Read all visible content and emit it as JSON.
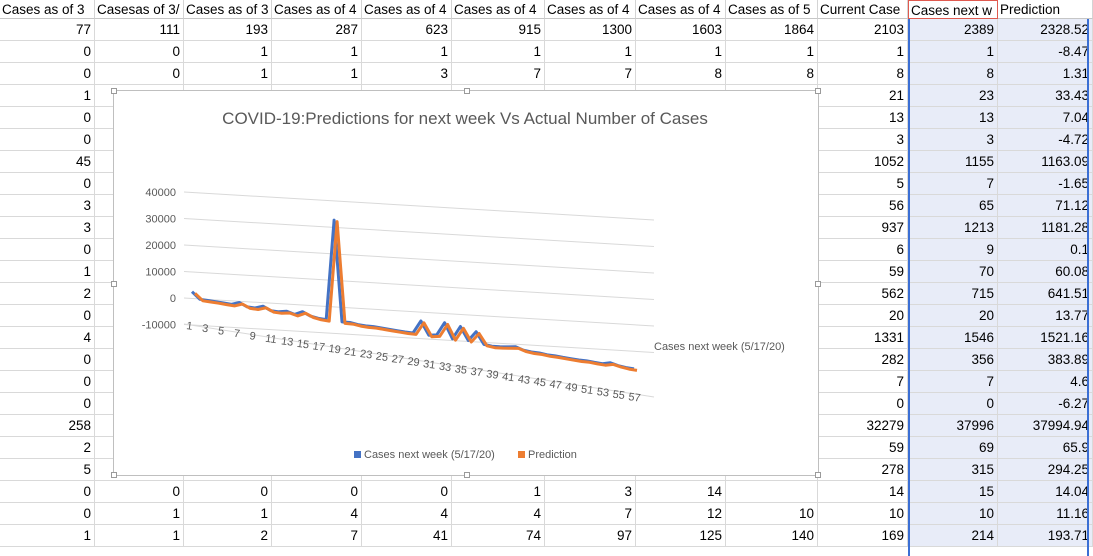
{
  "sheet": {
    "headers": [
      "Cases as of 3",
      "Casesas of 3/",
      "Cases as of 3",
      "Cases as of 4",
      "Cases as of 4",
      "Cases as of 4",
      "Cases as of 4",
      "Cases as of 4",
      "Cases as of 5",
      "Current Case",
      "Cases next w",
      "Prediction"
    ],
    "rows": [
      [
        "77",
        "111",
        "193",
        "287",
        "623",
        "915",
        "1300",
        "1603",
        "1864",
        "2103",
        "2389",
        "2328.52"
      ],
      [
        "0",
        "0",
        "1",
        "1",
        "1",
        "1",
        "1",
        "1",
        "1",
        "1",
        "1",
        "-8.47"
      ],
      [
        "0",
        "0",
        "1",
        "1",
        "3",
        "7",
        "7",
        "8",
        "8",
        "8",
        "8",
        "1.31"
      ],
      [
        "1",
        "",
        "",
        "",
        "",
        "",
        "",
        "",
        "",
        "21",
        "23",
        "33.43"
      ],
      [
        "0",
        "",
        "",
        "",
        "",
        "",
        "",
        "",
        "",
        "13",
        "13",
        "7.04"
      ],
      [
        "0",
        "",
        "",
        "",
        "",
        "",
        "",
        "",
        "",
        "3",
        "3",
        "-4.72"
      ],
      [
        "45",
        "",
        "",
        "",
        "",
        "",
        "",
        "",
        "",
        "1052",
        "1155",
        "1163.09"
      ],
      [
        "0",
        "",
        "",
        "",
        "",
        "",
        "",
        "",
        "",
        "5",
        "7",
        "-1.65"
      ],
      [
        "3",
        "",
        "",
        "",
        "",
        "",
        "",
        "",
        "",
        "56",
        "65",
        "71.12"
      ],
      [
        "3",
        "",
        "",
        "",
        "",
        "",
        "",
        "",
        "",
        "937",
        "1213",
        "1181.28"
      ],
      [
        "0",
        "",
        "",
        "",
        "",
        "",
        "",
        "",
        "",
        "6",
        "9",
        "0.1"
      ],
      [
        "1",
        "",
        "",
        "",
        "",
        "",
        "",
        "",
        "",
        "59",
        "70",
        "60.08"
      ],
      [
        "2",
        "",
        "",
        "",
        "",
        "",
        "",
        "",
        "",
        "562",
        "715",
        "641.51"
      ],
      [
        "0",
        "",
        "",
        "",
        "",
        "",
        "",
        "",
        "",
        "20",
        "20",
        "13.77"
      ],
      [
        "4",
        "",
        "",
        "",
        "",
        "",
        "",
        "",
        "",
        "1331",
        "1546",
        "1521.16"
      ],
      [
        "0",
        "",
        "",
        "",
        "",
        "",
        "",
        "",
        "",
        "282",
        "356",
        "383.89"
      ],
      [
        "0",
        "",
        "",
        "",
        "",
        "",
        "",
        "",
        "",
        "7",
        "7",
        "4.6"
      ],
      [
        "0",
        "",
        "",
        "",
        "",
        "",
        "",
        "",
        "",
        "0",
        "0",
        "-6.27"
      ],
      [
        "258",
        "",
        "",
        "",
        "",
        "",
        "",
        "",
        "",
        "32279",
        "37996",
        "37994.94"
      ],
      [
        "2",
        "",
        "",
        "",
        "",
        "",
        "",
        "",
        "",
        "59",
        "69",
        "65.9"
      ],
      [
        "5",
        "",
        "",
        "",
        "",
        "",
        "",
        "",
        "",
        "278",
        "315",
        "294.25"
      ],
      [
        "0",
        "0",
        "0",
        "0",
        "0",
        "1",
        "3",
        "14",
        "",
        "14",
        "15",
        "14.04"
      ],
      [
        "0",
        "1",
        "1",
        "4",
        "4",
        "4",
        "7",
        "12",
        "10",
        "10",
        "10",
        "11.16"
      ],
      [
        "1",
        "1",
        "2",
        "7",
        "41",
        "74",
        "97",
        "125",
        "140",
        "169",
        "214",
        "193.71"
      ]
    ]
  },
  "chart_data": {
    "type": "line",
    "title": "COVID-19:Predictions for next week Vs Actual Number of Cases",
    "yticks": [
      "40000",
      "30000",
      "20000",
      "10000",
      "0",
      "-10000"
    ],
    "ylim": [
      -10000,
      40000
    ],
    "xticks": [
      "1",
      "3",
      "5",
      "7",
      "9",
      "11",
      "13",
      "15",
      "17",
      "19",
      "21",
      "23",
      "25",
      "27",
      "29",
      "31",
      "33",
      "35",
      "37",
      "39",
      "41",
      "43",
      "45",
      "47",
      "49",
      "51",
      "53",
      "55",
      "57"
    ],
    "series_axis_label": "Cases next week (5/17/20)",
    "legend": [
      "Cases next week (5/17/20)",
      "Prediction"
    ],
    "colors": {
      "series1": "#4472c4",
      "series2": "#ed7d31"
    },
    "series": [
      {
        "name": "Cases next week (5/17/20)",
        "values": [
          2389,
          1,
          8,
          23,
          13,
          3,
          1155,
          7,
          65,
          1213,
          9,
          70,
          715,
          20,
          1546,
          356,
          7,
          0,
          37996,
          69,
          315,
          15,
          10,
          214,
          150,
          100,
          90,
          80,
          200,
          5200,
          300,
          900,
          6000,
          400,
          5500,
          700,
          4500,
          200,
          0,
          300,
          700,
          1200,
          400,
          200,
          300,
          100,
          150,
          90,
          60,
          50,
          200,
          100,
          80,
          900,
          300,
          60,
          40
        ]
      },
      {
        "name": "Prediction",
        "values": [
          2328.52,
          -8.47,
          1.31,
          33.43,
          7.04,
          -4.72,
          1163.09,
          -1.65,
          71.12,
          1181.28,
          0.1,
          60.08,
          641.51,
          13.77,
          1521.16,
          383.89,
          4.6,
          -6.27,
          37994.94,
          65.9,
          294.25,
          14.04,
          11.16,
          193.71,
          160,
          110,
          95,
          85,
          210,
          5100,
          320,
          920,
          5900,
          420,
          5400,
          720,
          4400,
          220,
          10,
          310,
          710,
          1180,
          410,
          210,
          310,
          110,
          160,
          95,
          65,
          55,
          210,
          110,
          85,
          880,
          310,
          65,
          45
        ]
      }
    ]
  }
}
